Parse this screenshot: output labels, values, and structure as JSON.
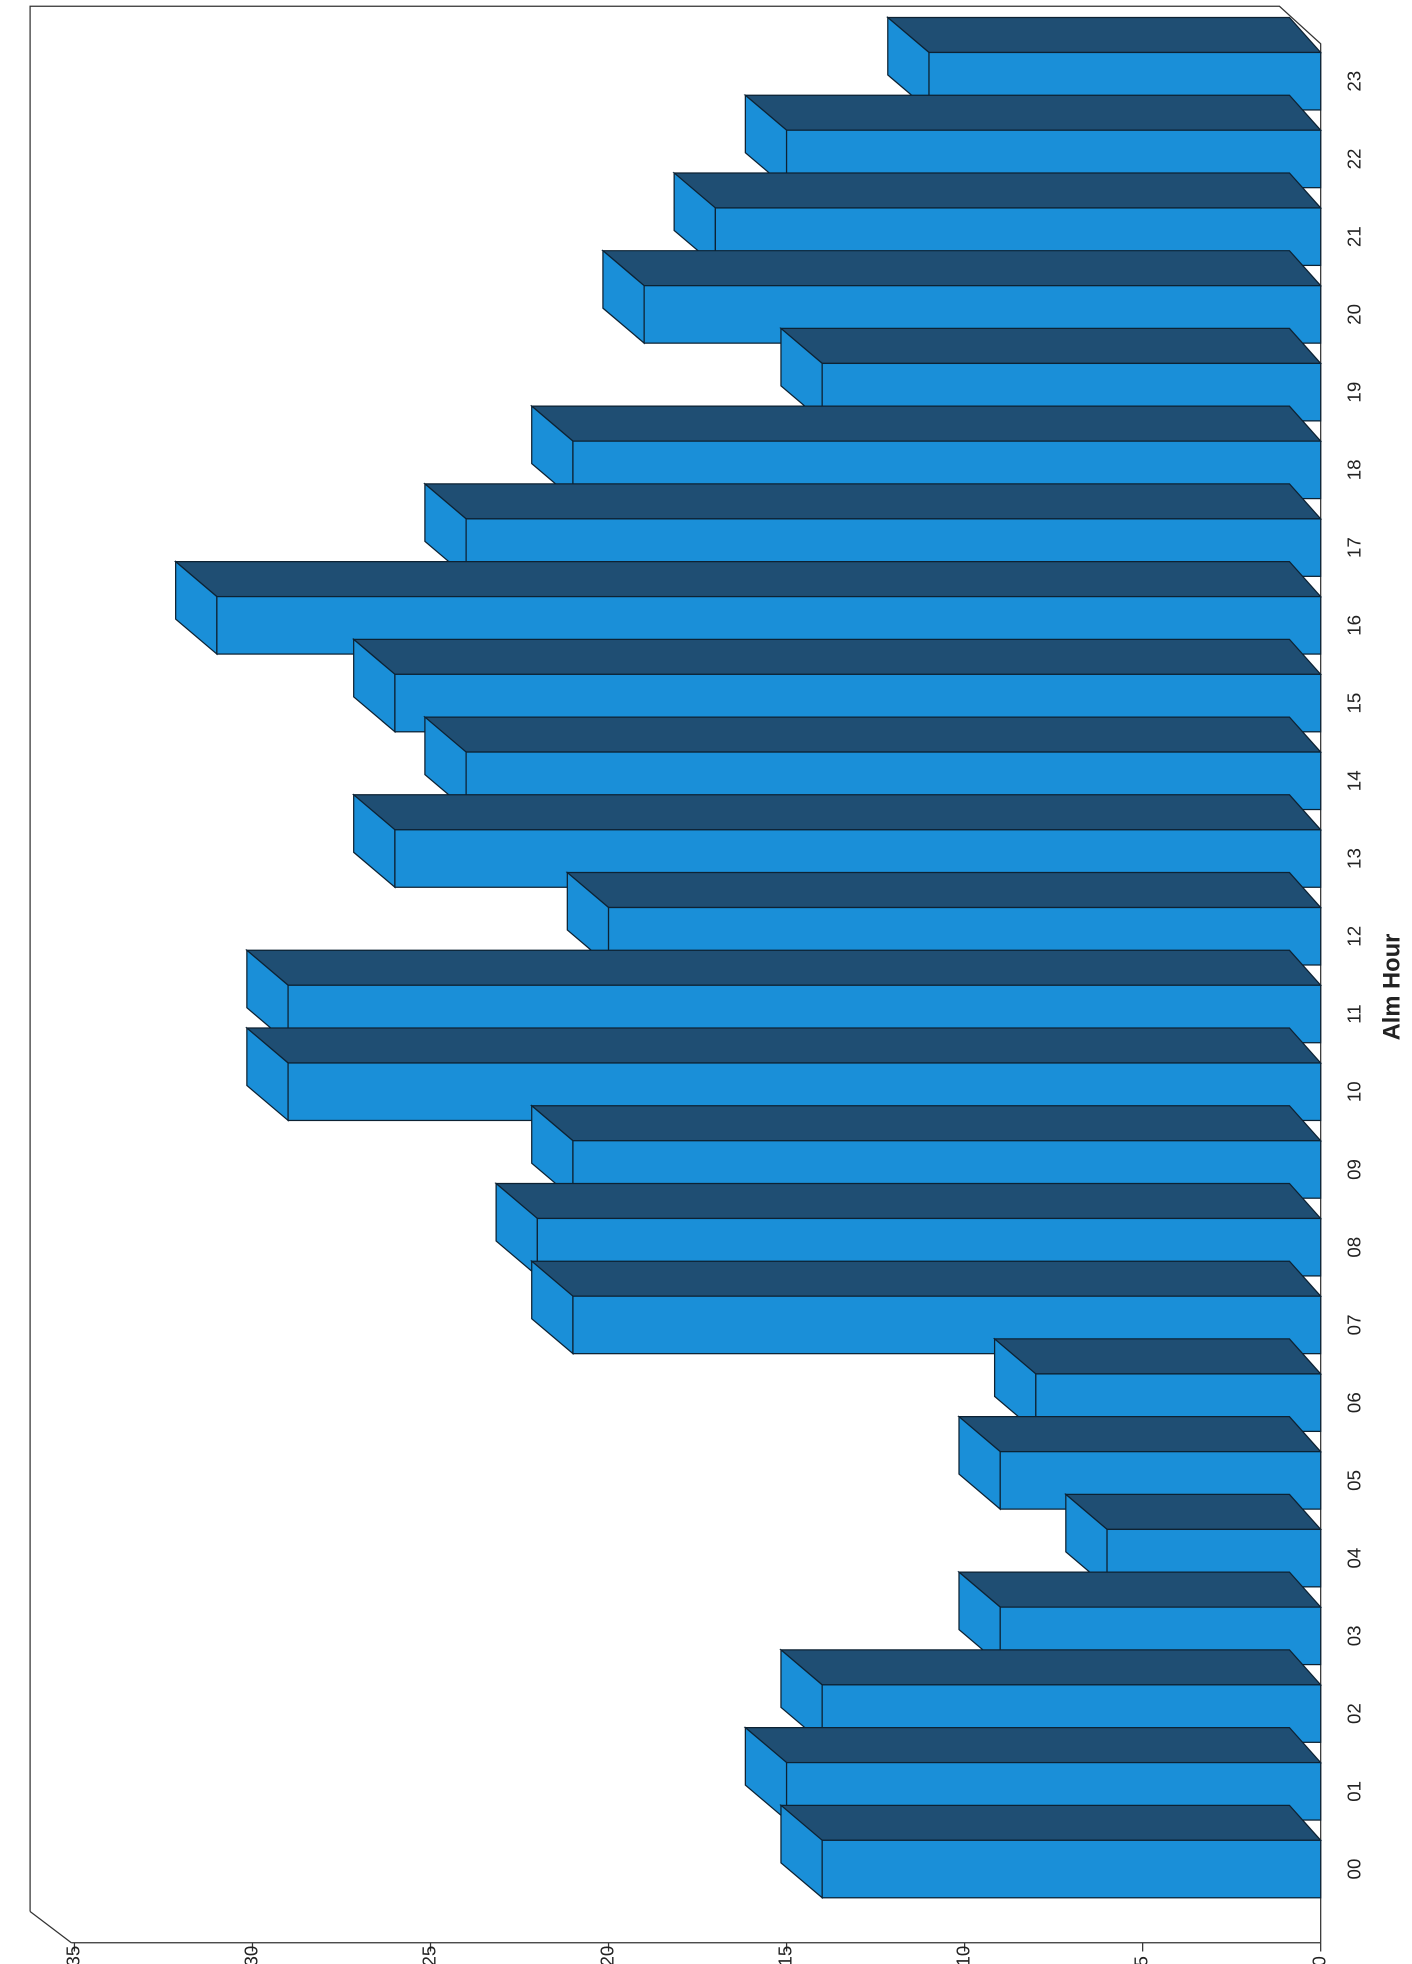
{
  "chart_data": {
    "type": "bar",
    "orientation": "horizontal-rotated",
    "x_label": "Alm Hour",
    "categories": [
      "00",
      "01",
      "02",
      "03",
      "04",
      "05",
      "06",
      "07",
      "08",
      "09",
      "10",
      "11",
      "12",
      "13",
      "14",
      "15",
      "16",
      "17",
      "18",
      "19",
      "20",
      "21",
      "22",
      "23"
    ],
    "values": [
      14,
      15,
      14,
      9,
      6,
      9,
      8,
      21,
      22,
      21,
      29,
      29,
      20,
      26,
      24,
      26,
      31,
      24,
      21,
      14,
      19,
      17,
      15,
      11
    ],
    "color": "#1a8fd8",
    "shade_color": "#1f4e73",
    "ylim": [
      0,
      35
    ],
    "yticks": [
      0,
      5,
      10,
      15,
      20,
      25,
      30,
      35
    ]
  }
}
